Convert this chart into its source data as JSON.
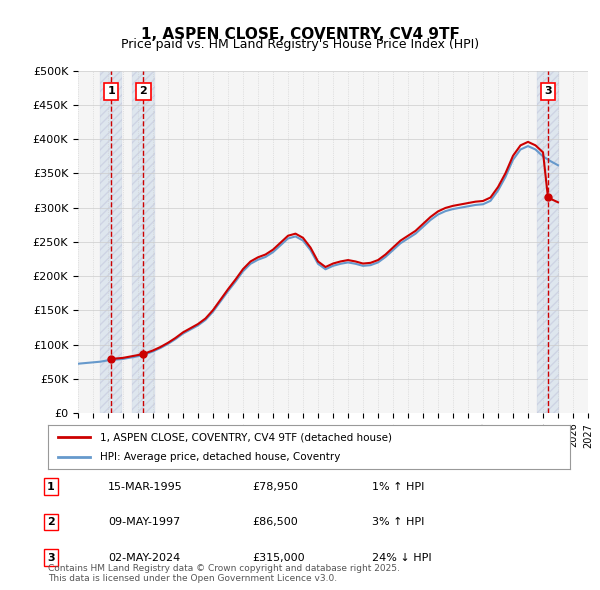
{
  "title": "1, ASPEN CLOSE, COVENTRY, CV4 9TF",
  "subtitle": "Price paid vs. HM Land Registry's House Price Index (HPI)",
  "ylabel": "",
  "xlabel": "",
  "ylim": [
    0,
    500000
  ],
  "yticks": [
    0,
    50000,
    100000,
    150000,
    200000,
    250000,
    300000,
    350000,
    400000,
    450000,
    500000
  ],
  "ytick_labels": [
    "£0",
    "£50K",
    "£100K",
    "£150K",
    "£200K",
    "£250K",
    "£300K",
    "£350K",
    "£400K",
    "£450K",
    "£500K"
  ],
  "xlim_start": 1993.0,
  "xlim_end": 2027.0,
  "background_color": "#ffffff",
  "plot_bg_color": "#f5f5f5",
  "grid_color": "#cccccc",
  "sale_dates": [
    1995.21,
    1997.36,
    2024.33
  ],
  "sale_prices": [
    78950,
    86500,
    315000
  ],
  "sale_labels": [
    "1",
    "2",
    "3"
  ],
  "sale_date_strs": [
    "15-MAR-1995",
    "09-MAY-1997",
    "02-MAY-2024"
  ],
  "sale_price_strs": [
    "£78,950",
    "£86,500",
    "£315,000"
  ],
  "sale_hpi_strs": [
    "1% ↑ HPI",
    "3% ↑ HPI",
    "24% ↓ HPI"
  ],
  "legend_line1": "1, ASPEN CLOSE, COVENTRY, CV4 9TF (detached house)",
  "legend_line2": "HPI: Average price, detached house, Coventry",
  "footer": "Contains HM Land Registry data © Crown copyright and database right 2025.\nThis data is licensed under the Open Government Licence v3.0.",
  "line_color_red": "#cc0000",
  "line_color_blue": "#6699cc",
  "hatch_color": "#c8d8e8",
  "hatch_color2": "#dce8f0",
  "dashed_line_color": "#cc0000",
  "hpi_data_years": [
    1993.0,
    1993.5,
    1994.0,
    1994.5,
    1995.0,
    1995.5,
    1996.0,
    1996.5,
    1997.0,
    1997.5,
    1998.0,
    1998.5,
    1999.0,
    1999.5,
    2000.0,
    2000.5,
    2001.0,
    2001.5,
    2002.0,
    2002.5,
    2003.0,
    2003.5,
    2004.0,
    2004.5,
    2005.0,
    2005.5,
    2006.0,
    2006.5,
    2007.0,
    2007.5,
    2008.0,
    2008.5,
    2009.0,
    2009.5,
    2010.0,
    2010.5,
    2011.0,
    2011.5,
    2012.0,
    2012.5,
    2013.0,
    2013.5,
    2014.0,
    2014.5,
    2015.0,
    2015.5,
    2016.0,
    2016.5,
    2017.0,
    2017.5,
    2018.0,
    2018.5,
    2019.0,
    2019.5,
    2020.0,
    2020.5,
    2021.0,
    2021.5,
    2022.0,
    2022.5,
    2023.0,
    2023.5,
    2024.0,
    2024.5,
    2025.0
  ],
  "hpi_values": [
    72000,
    73000,
    74000,
    75000,
    77000,
    78000,
    79000,
    81000,
    83000,
    86000,
    90000,
    95000,
    101000,
    108000,
    116000,
    122000,
    128000,
    136000,
    148000,
    163000,
    178000,
    192000,
    207000,
    218000,
    224000,
    228000,
    235000,
    245000,
    255000,
    258000,
    252000,
    238000,
    218000,
    210000,
    215000,
    218000,
    220000,
    218000,
    215000,
    216000,
    220000,
    228000,
    238000,
    248000,
    255000,
    262000,
    272000,
    282000,
    290000,
    295000,
    298000,
    300000,
    302000,
    304000,
    305000,
    310000,
    325000,
    345000,
    370000,
    385000,
    390000,
    385000,
    375000,
    368000,
    362000
  ],
  "price_paid_years": [
    1995.21,
    1997.36,
    2024.33
  ],
  "price_paid_values": [
    78950,
    86500,
    315000
  ]
}
